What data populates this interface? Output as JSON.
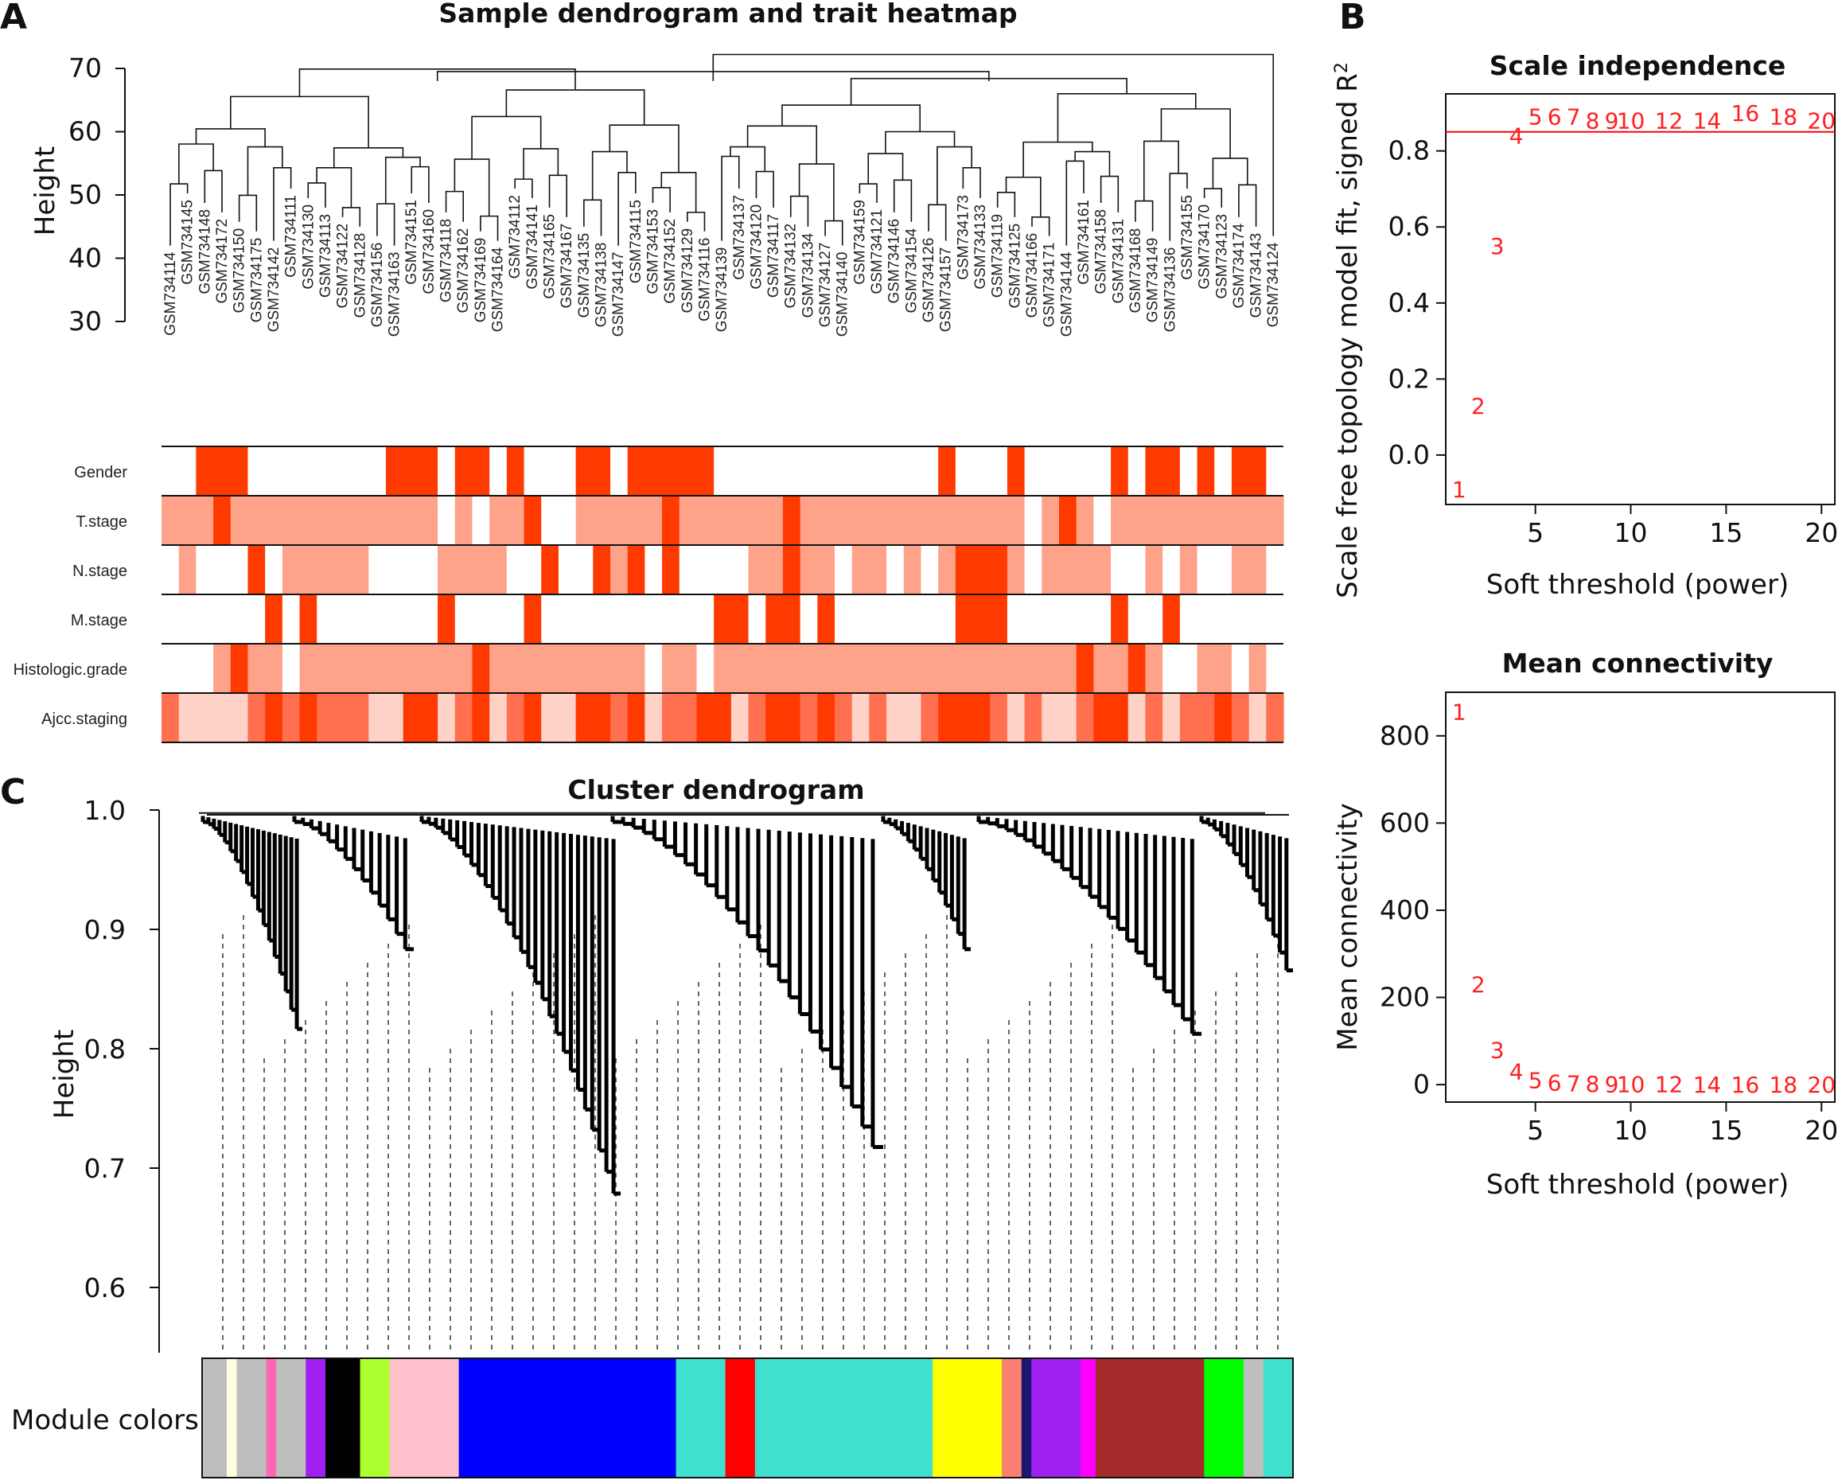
{
  "panels": {
    "A": "A",
    "B": "B",
    "C": "C"
  },
  "chart_data": [
    {
      "type": "heatmap",
      "title": "Sample dendrogram and trait heatmap",
      "ylabel": "Height",
      "yticks": [
        "30",
        "40",
        "50",
        "60",
        "70"
      ],
      "ylim": [
        30,
        70
      ],
      "samples": [
        "GSM734114",
        "GSM734145",
        "GSM734148",
        "GSM734172",
        "GSM734150",
        "GSM734175",
        "GSM734142",
        "GSM734111",
        "GSM734130",
        "GSM734113",
        "GSM734122",
        "GSM734128",
        "GSM734156",
        "GSM734163",
        "GSM734151",
        "GSM734160",
        "GSM734118",
        "GSM734162",
        "GSM734169",
        "GSM734164",
        "GSM734112",
        "GSM734141",
        "GSM734165",
        "GSM734167",
        "GSM734135",
        "GSM734138",
        "GSM734147",
        "GSM734115",
        "GSM734153",
        "GSM734152",
        "GSM734129",
        "GSM734116",
        "GSM734139",
        "GSM734137",
        "GSM734120",
        "GSM734117",
        "GSM734132",
        "GSM734134",
        "GSM734127",
        "GSM734140",
        "GSM734159",
        "GSM734121",
        "GSM734146",
        "GSM734154",
        "GSM734126",
        "GSM734157",
        "GSM734173",
        "GSM734133",
        "GSM734119",
        "GSM734125",
        "GSM734166",
        "GSM734171",
        "GSM734144",
        "GSM734161",
        "GSM734158",
        "GSM734131",
        "GSM734168",
        "GSM734149",
        "GSM734136",
        "GSM734155",
        "GSM734170",
        "GSM734123",
        "GSM734174",
        "GSM734143",
        "GSM734124"
      ],
      "traits": [
        "Gender",
        "T.stage",
        "N.stage",
        "M.stage",
        "Histologic.grade",
        "Ajcc.staging"
      ],
      "trait_colors": [
        "#ffffff",
        "#ffd2c8",
        "#ffa28a",
        "#ff6f50",
        "#ff3a00"
      ],
      "trait_levels": [
        [
          0,
          0,
          4,
          4,
          4,
          0,
          0,
          0,
          0,
          0,
          0,
          0,
          0,
          4,
          4,
          4,
          0,
          4,
          4,
          0,
          4,
          0,
          0,
          0,
          4,
          4,
          0,
          4,
          4,
          4,
          4,
          4,
          0,
          0,
          0,
          0,
          0,
          0,
          0,
          0,
          0,
          0,
          0,
          0,
          0,
          4,
          0,
          0,
          0,
          4,
          0,
          0,
          0,
          0,
          0,
          4,
          0,
          4,
          4,
          0,
          4,
          0,
          4,
          4,
          0
        ],
        [
          2,
          2,
          2,
          4,
          2,
          2,
          2,
          2,
          2,
          2,
          2,
          2,
          2,
          2,
          2,
          2,
          0,
          2,
          0,
          2,
          2,
          4,
          0,
          0,
          2,
          2,
          2,
          2,
          2,
          4,
          2,
          2,
          2,
          2,
          2,
          2,
          4,
          2,
          2,
          2,
          2,
          2,
          2,
          2,
          2,
          2,
          2,
          2,
          2,
          2,
          0,
          2,
          4,
          2,
          0,
          2,
          2,
          2,
          2,
          2,
          2,
          2,
          2,
          2,
          2
        ],
        [
          0,
          2,
          0,
          0,
          0,
          4,
          0,
          2,
          2,
          2,
          2,
          2,
          0,
          0,
          0,
          0,
          2,
          2,
          2,
          2,
          0,
          0,
          4,
          0,
          0,
          4,
          2,
          4,
          0,
          4,
          0,
          0,
          0,
          0,
          2,
          2,
          4,
          2,
          2,
          0,
          2,
          2,
          0,
          2,
          0,
          2,
          4,
          4,
          4,
          2,
          0,
          2,
          2,
          2,
          2,
          0,
          0,
          2,
          0,
          2,
          0,
          0,
          2,
          2,
          0
        ],
        [
          0,
          0,
          0,
          0,
          0,
          0,
          4,
          0,
          4,
          0,
          0,
          0,
          0,
          0,
          0,
          0,
          4,
          0,
          0,
          0,
          0,
          4,
          0,
          0,
          0,
          0,
          0,
          0,
          0,
          0,
          0,
          0,
          4,
          4,
          0,
          4,
          4,
          0,
          4,
          0,
          0,
          0,
          0,
          0,
          0,
          0,
          4,
          4,
          4,
          0,
          0,
          0,
          0,
          0,
          0,
          4,
          0,
          0,
          4,
          0,
          0,
          0,
          0,
          0,
          0
        ],
        [
          0,
          0,
          0,
          2,
          4,
          2,
          2,
          0,
          2,
          2,
          2,
          2,
          2,
          2,
          2,
          2,
          2,
          2,
          4,
          2,
          2,
          2,
          2,
          2,
          2,
          2,
          2,
          2,
          0,
          2,
          2,
          0,
          2,
          2,
          2,
          2,
          2,
          2,
          2,
          2,
          2,
          2,
          2,
          2,
          2,
          2,
          2,
          2,
          2,
          2,
          2,
          2,
          2,
          4,
          2,
          2,
          4,
          2,
          0,
          0,
          2,
          2,
          0,
          2,
          0
        ],
        [
          3,
          1,
          1,
          1,
          1,
          3,
          4,
          3,
          4,
          3,
          3,
          3,
          1,
          1,
          4,
          4,
          1,
          3,
          4,
          1,
          3,
          4,
          1,
          1,
          4,
          4,
          3,
          4,
          1,
          3,
          3,
          4,
          4,
          1,
          3,
          4,
          4,
          3,
          4,
          3,
          1,
          3,
          1,
          1,
          3,
          4,
          4,
          4,
          3,
          1,
          3,
          1,
          1,
          3,
          4,
          4,
          1,
          3,
          1,
          3,
          3,
          4,
          3,
          1,
          3
        ]
      ]
    },
    {
      "type": "scatter",
      "title": "Scale independence",
      "xlabel": "Soft threshold (power)",
      "ylabel": "Scale free topology model fit, signed R",
      "ylabel_sup": "2",
      "x": [
        1,
        2,
        3,
        4,
        5,
        6,
        7,
        8,
        9,
        10,
        12,
        14,
        16,
        18,
        20
      ],
      "y": [
        -0.09,
        0.13,
        0.55,
        0.84,
        0.89,
        0.89,
        0.89,
        0.88,
        0.88,
        0.88,
        0.88,
        0.88,
        0.9,
        0.89,
        0.88
      ],
      "point_labels": [
        "1",
        "2",
        "3",
        "4",
        "5",
        "6",
        "7",
        "8",
        "9",
        "10",
        "12",
        "14",
        "16",
        "18",
        "20"
      ],
      "xticks": [
        "5",
        "10",
        "15",
        "20"
      ],
      "yticks": [
        "0.0",
        "0.2",
        "0.4",
        "0.6",
        "0.8"
      ],
      "xlim": [
        0.3,
        20.7
      ],
      "ylim": [
        -0.13,
        0.95
      ],
      "hline": 0.85,
      "color": "#ff0000"
    },
    {
      "type": "scatter",
      "title": "Mean connectivity",
      "xlabel": "Soft threshold (power)",
      "ylabel": "Mean connectivity",
      "x": [
        1,
        2,
        3,
        4,
        5,
        6,
        7,
        8,
        9,
        10,
        12,
        14,
        16,
        18,
        20
      ],
      "y": [
        855,
        230,
        80,
        30,
        10,
        5,
        3,
        2,
        1,
        1,
        1,
        0,
        0,
        0,
        0
      ],
      "point_labels": [
        "1",
        "2",
        "3",
        "4",
        "5",
        "6",
        "7",
        "8",
        "9",
        "10",
        "12",
        "14",
        "16",
        "18",
        "20"
      ],
      "xticks": [
        "5",
        "10",
        "15",
        "20"
      ],
      "yticks": [
        "0",
        "200",
        "400",
        "600",
        "800"
      ],
      "xlim": [
        0.3,
        20.7
      ],
      "ylim": [
        -40,
        900
      ],
      "color": "#ff0000"
    },
    {
      "type": "other",
      "title": "Cluster dendrogram",
      "ylabel": "Height",
      "yticks": [
        "0.6",
        "0.7",
        "0.8",
        "0.9",
        "1.0"
      ],
      "ylim": [
        0.55,
        1.0
      ],
      "module_label": "Module colors",
      "module_colors": [
        "#bebebe",
        "#ffffe0",
        "#bebebe",
        "#ff69b4",
        "#bebebe",
        "#a020f0",
        "#000000",
        "#adff2f",
        "#ffc0cb",
        "#0000ff",
        "#40e0d0",
        "#ff0000",
        "#40e0d0",
        "#ffff00",
        "#fa8072",
        "#191970",
        "#a020f0",
        "#ff00ff",
        "#a52a2a",
        "#00ff00",
        "#bebebe",
        "#40e0d0"
      ],
      "module_weights": [
        2.5,
        1,
        3,
        1,
        3,
        2,
        3.5,
        3,
        7,
        22,
        5,
        3,
        18,
        7,
        2,
        1,
        5,
        1.5,
        11,
        4,
        2,
        3
      ]
    }
  ]
}
